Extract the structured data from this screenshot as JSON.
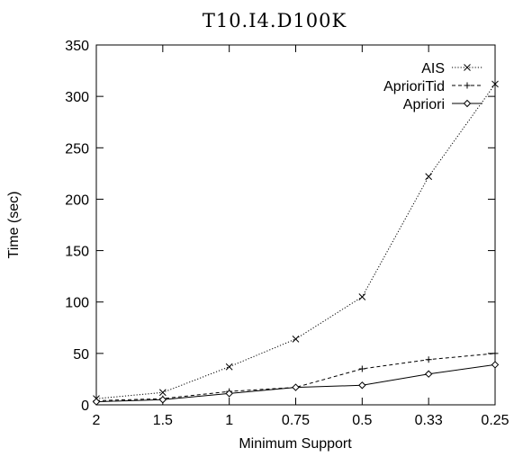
{
  "chart_data": {
    "type": "line",
    "title": "T10.I4.D100K",
    "xlabel": "Minimum Support",
    "ylabel": "Time (sec)",
    "categories": [
      "2",
      "1.5",
      "1",
      "0.75",
      "0.5",
      "0.33",
      "0.25"
    ],
    "ylim": [
      0,
      350
    ],
    "yticks": [
      0,
      50,
      100,
      150,
      200,
      250,
      300,
      350
    ],
    "grid": false,
    "legend_position": "top-right",
    "series": [
      {
        "name": "AIS",
        "marker": "x",
        "dash": "dotted",
        "values": [
          6,
          12,
          37,
          64,
          105,
          222,
          312
        ]
      },
      {
        "name": "AprioriTid",
        "marker": "+",
        "dash": "dashed",
        "values": [
          4,
          6,
          13,
          17,
          35,
          44,
          50
        ]
      },
      {
        "name": "Apriori",
        "marker": "diamond",
        "dash": "solid",
        "values": [
          3,
          5,
          11,
          17,
          19,
          30,
          39
        ]
      }
    ]
  }
}
